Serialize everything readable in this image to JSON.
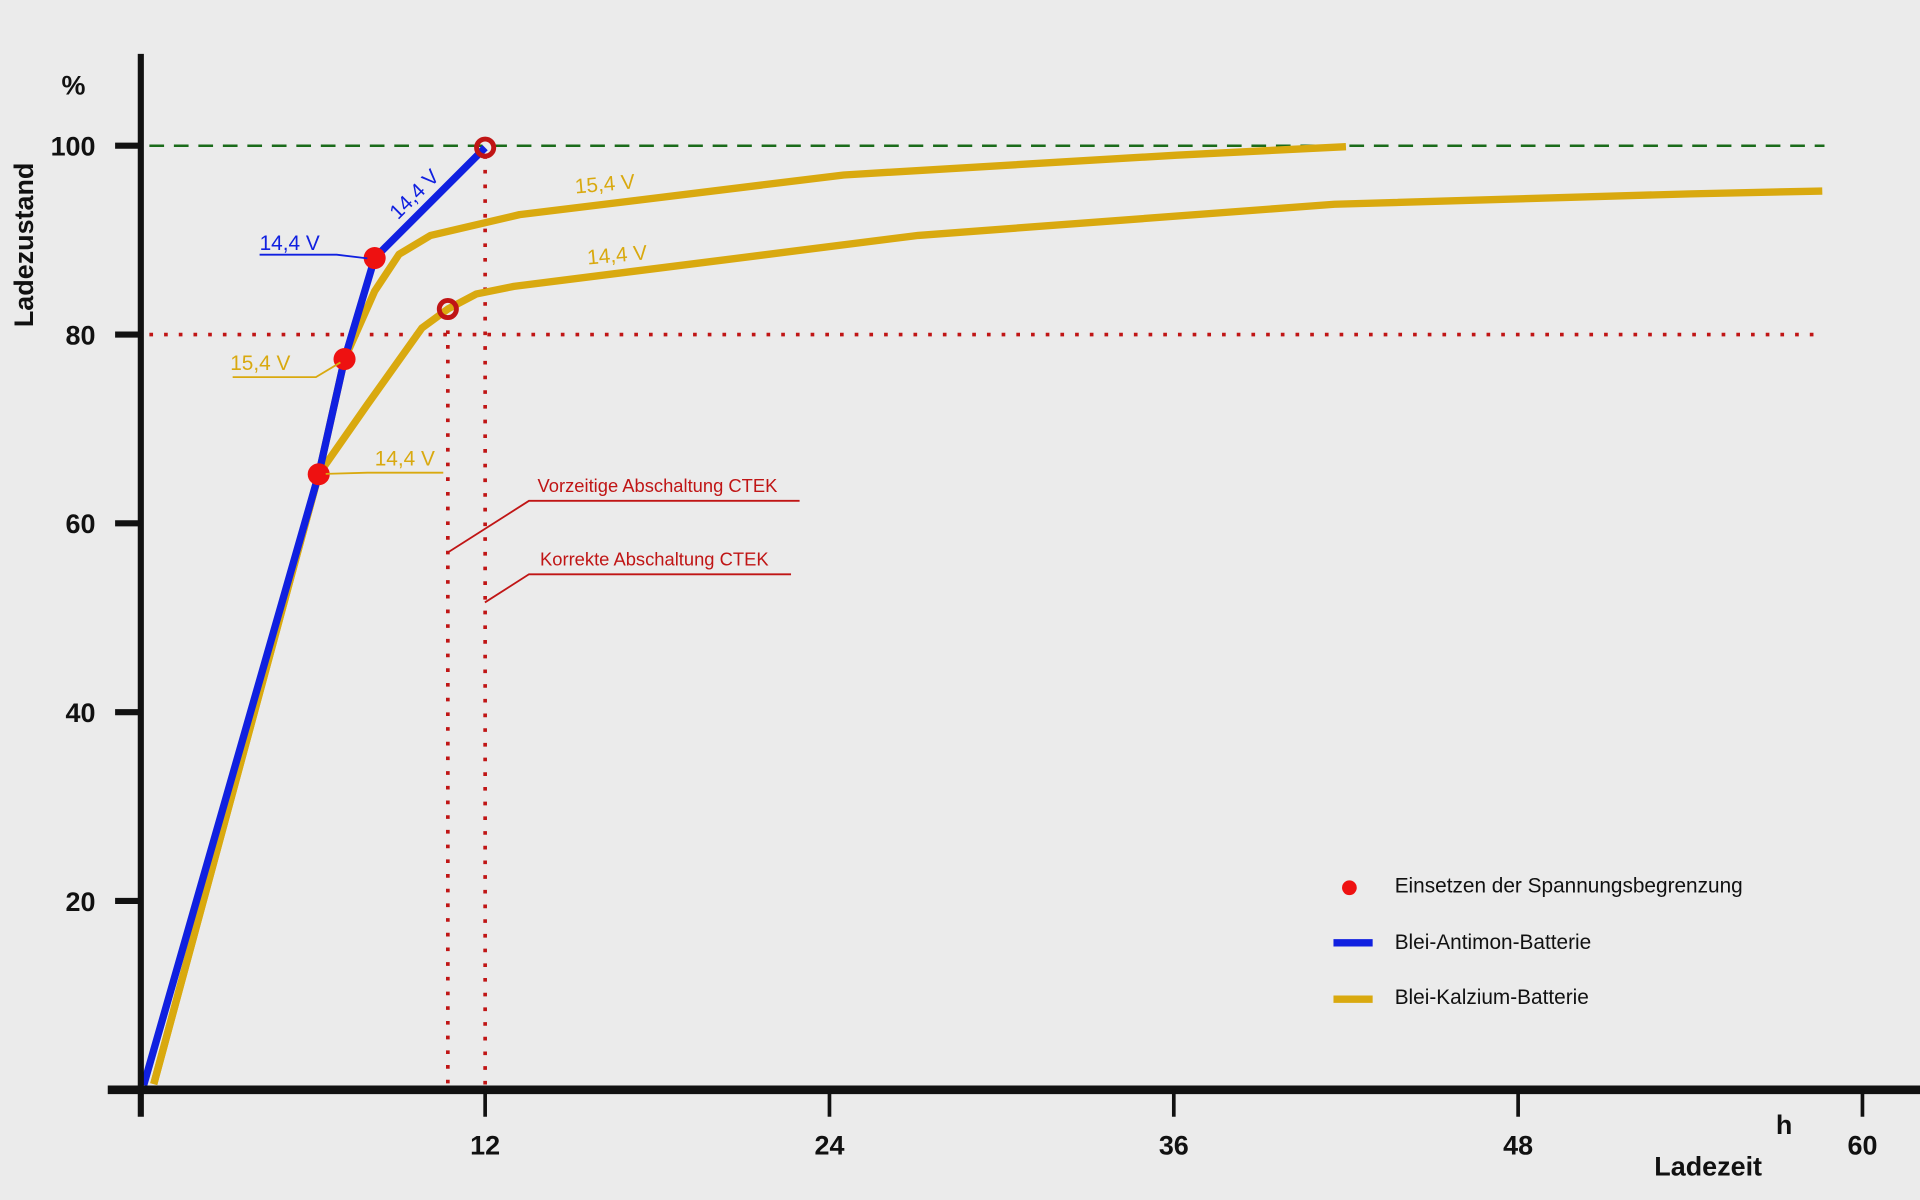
{
  "chart_data": {
    "type": "line",
    "xlabel": "Ladezeit",
    "xunit": "h",
    "ylabel": "Ladezustand",
    "yunit": "%",
    "xlim": [
      0,
      60
    ],
    "ylim": [
      0,
      110
    ],
    "xticks": [
      12,
      24,
      36,
      48,
      60
    ],
    "yticks": [
      20,
      40,
      60,
      80,
      100
    ],
    "grid": false,
    "legend_position": "bottom-right",
    "colors": {
      "blue": "#1020e0",
      "yellow": "#d9a90f",
      "marker": "#ee1111",
      "cutoff": "#c01515",
      "full": "#1a6b1a",
      "axis": "#111111"
    },
    "series": [
      {
        "name": "Blei-Antimon-Batterie",
        "color": "#1020e0",
        "voltage": "14,4 V",
        "points": [
          [
            0.1,
            0.5
          ],
          [
            6.2,
            65.2
          ],
          [
            7.1,
            77.4
          ],
          [
            8.15,
            88.1
          ],
          [
            12,
            99.8
          ]
        ]
      },
      {
        "name": "Blei-Kalzium-Batterie",
        "color": "#d9a90f",
        "voltage": "15,4 V",
        "points": [
          [
            0.45,
            0.6
          ],
          [
            6.2,
            65.2
          ],
          [
            7.1,
            77.4
          ],
          [
            8.15,
            84.6
          ],
          [
            9.0,
            88.5
          ],
          [
            10.1,
            90.5
          ],
          [
            13.2,
            92.7
          ],
          [
            24.5,
            96.9
          ],
          [
            36.1,
            99.0
          ],
          [
            42,
            99.9
          ]
        ]
      },
      {
        "name": "Blei-Kalzium-Batterie",
        "color": "#d9a90f",
        "voltage": "14,4 V",
        "points": [
          [
            0.45,
            0.6
          ],
          [
            6.2,
            65.2
          ],
          [
            7.9,
            72.6
          ],
          [
            9.8,
            80.7
          ],
          [
            10.7,
            82.7
          ],
          [
            11.7,
            84.3
          ],
          [
            13,
            85.1
          ],
          [
            27.1,
            90.5
          ],
          [
            41.6,
            93.8
          ],
          [
            54,
            94.9
          ],
          [
            58.6,
            95.2
          ]
        ]
      }
    ],
    "voltage_limit_points": [
      [
        6.2,
        65.2
      ],
      [
        7.1,
        77.4
      ],
      [
        8.15,
        88.1
      ]
    ],
    "cutoff_points": [
      [
        10.7,
        82.7
      ],
      [
        12,
        99.8
      ]
    ],
    "reference_lines": {
      "full_charge": 100,
      "cutoff_threshold": 80,
      "premature_cutoff_h": 10.7,
      "correct_cutoff_h": 12
    },
    "annotations": {
      "blue_14_4_left": "14,4 V",
      "blue_14_4_slope": "14,4 V",
      "yellow_15_4_left": "15,4 V",
      "yellow_14_4_left": "14,4 V",
      "yellow_15_4_curve": "15,4 V",
      "yellow_14_4_curve": "14,4 V",
      "premature": "Vorzeitige Abschaltung CTEK",
      "correct": "Korrekte Abschaltung CTEK"
    },
    "legend": [
      {
        "label": "Einsetzen der Spannungsbegrenzung",
        "symbol": "dot",
        "color": "#ee1111"
      },
      {
        "label": "Blei-Antimon-Batterie",
        "symbol": "line",
        "color": "#1020e0"
      },
      {
        "label": "Blei-Kalzium-Batterie",
        "symbol": "line",
        "color": "#d9a90f"
      }
    ]
  }
}
